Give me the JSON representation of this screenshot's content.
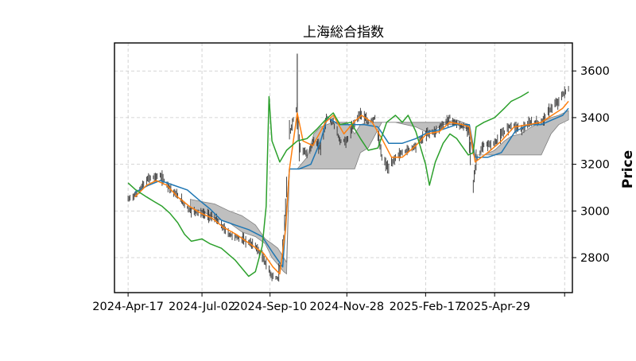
{
  "chart_data": {
    "type": "candlestick",
    "title": "上海総合指数",
    "ylabel": "Price",
    "xlabel": "",
    "y_axis_side": "right",
    "grid": true,
    "ylim": [
      2650,
      3720
    ],
    "xlim": [
      "2024-04-03",
      "2025-07-18"
    ],
    "x_ticks": [
      {
        "date": "2024-04-17",
        "label": "2024-Apr-17"
      },
      {
        "date": "2024-07-02",
        "label": "2024-Jul-02"
      },
      {
        "date": "2024-09-10",
        "label": "2024-Sep-10"
      },
      {
        "date": "2024-11-28",
        "label": "2024-Nov-28"
      },
      {
        "date": "2025-02-17",
        "label": "2025-Feb-17"
      },
      {
        "date": "2025-04-29",
        "label": "2025-Apr-29"
      },
      {
        "date": "2025-07-10",
        "label": ""
      }
    ],
    "y_ticks": [
      2800,
      3000,
      3200,
      3400,
      3600
    ],
    "price_path": [
      [
        "2024-04-17",
        3050
      ],
      [
        "2024-04-25",
        3070
      ],
      [
        "2024-05-08",
        3140
      ],
      [
        "2024-05-20",
        3150
      ],
      [
        "2024-05-30",
        3100
      ],
      [
        "2024-06-10",
        3050
      ],
      [
        "2024-06-20",
        3000
      ],
      [
        "2024-07-02",
        2990
      ],
      [
        "2024-07-15",
        2970
      ],
      [
        "2024-07-30",
        2900
      ],
      [
        "2024-08-12",
        2880
      ],
      [
        "2024-08-26",
        2850
      ],
      [
        "2024-09-05",
        2780
      ],
      [
        "2024-09-12",
        2720
      ],
      [
        "2024-09-18",
        2710
      ],
      [
        "2024-09-24",
        2860
      ],
      [
        "2024-09-27",
        3090
      ],
      [
        "2024-09-30",
        3330
      ],
      [
        "2024-10-08",
        3450
      ],
      [
        "2024-10-10",
        3280
      ],
      [
        "2024-10-18",
        3240
      ],
      [
        "2024-10-25",
        3300
      ],
      [
        "2024-11-01",
        3270
      ],
      [
        "2024-11-07",
        3400
      ],
      [
        "2024-11-14",
        3380
      ],
      [
        "2024-11-21",
        3300
      ],
      [
        "2024-11-28",
        3300
      ],
      [
        "2024-12-06",
        3380
      ],
      [
        "2024-12-12",
        3420
      ],
      [
        "2024-12-20",
        3380
      ],
      [
        "2024-12-27",
        3400
      ],
      [
        "2025-01-03",
        3230
      ],
      [
        "2025-01-10",
        3180
      ],
      [
        "2025-01-17",
        3230
      ],
      [
        "2025-01-24",
        3250
      ],
      [
        "2025-02-07",
        3280
      ],
      [
        "2025-02-17",
        3330
      ],
      [
        "2025-02-27",
        3340
      ],
      [
        "2025-03-07",
        3370
      ],
      [
        "2025-03-14",
        3400
      ],
      [
        "2025-03-21",
        3370
      ],
      [
        "2025-04-02",
        3350
      ],
      [
        "2025-04-07",
        3100
      ],
      [
        "2025-04-10",
        3220
      ],
      [
        "2025-04-18",
        3280
      ],
      [
        "2025-04-29",
        3290
      ],
      [
        "2025-05-09",
        3340
      ],
      [
        "2025-05-16",
        3370
      ],
      [
        "2025-05-26",
        3350
      ],
      [
        "2025-06-06",
        3380
      ],
      [
        "2025-06-16",
        3380
      ],
      [
        "2025-06-26",
        3440
      ],
      [
        "2025-07-04",
        3470
      ],
      [
        "2025-07-10",
        3510
      ],
      [
        "2025-07-14",
        3520
      ]
    ],
    "cloud": [
      [
        "2024-06-20",
        3050,
        3010
      ],
      [
        "2024-07-02",
        3040,
        3000
      ],
      [
        "2024-07-15",
        3030,
        2970
      ],
      [
        "2024-07-30",
        3000,
        2950
      ],
      [
        "2024-08-12",
        2980,
        2910
      ],
      [
        "2024-08-26",
        2940,
        2890
      ],
      [
        "2024-09-05",
        2880,
        2860
      ],
      [
        "2024-09-12",
        2860,
        2800
      ],
      [
        "2024-09-18",
        2840,
        2770
      ],
      [
        "2024-09-24",
        2800,
        2740
      ],
      [
        "2024-09-27",
        2780,
        2730
      ],
      [
        "2024-09-30",
        3180,
        3180
      ],
      [
        "2024-10-08",
        3180,
        3180
      ],
      [
        "2024-10-18",
        3230,
        3180
      ],
      [
        "2024-10-25",
        3330,
        3180
      ],
      [
        "2024-11-01",
        3360,
        3180
      ],
      [
        "2024-11-14",
        3380,
        3180
      ],
      [
        "2024-11-28",
        3380,
        3180
      ],
      [
        "2024-12-06",
        3330,
        3180
      ],
      [
        "2024-12-12",
        3370,
        3250
      ],
      [
        "2024-12-20",
        3380,
        3270
      ],
      [
        "2025-01-03",
        3380,
        3380
      ],
      [
        "2025-01-17",
        3380,
        3380
      ],
      [
        "2025-02-07",
        3380,
        3360
      ],
      [
        "2025-02-17",
        3380,
        3340
      ],
      [
        "2025-02-27",
        3380,
        3350
      ],
      [
        "2025-03-07",
        3380,
        3370
      ],
      [
        "2025-03-21",
        3390,
        3370
      ],
      [
        "2025-04-02",
        3370,
        3350
      ],
      [
        "2025-04-07",
        3240,
        3240
      ],
      [
        "2025-04-18",
        3240,
        3240
      ],
      [
        "2025-04-29",
        3260,
        3240
      ],
      [
        "2025-05-09",
        3300,
        3240
      ],
      [
        "2025-05-16",
        3320,
        3240
      ],
      [
        "2025-05-26",
        3330,
        3240
      ],
      [
        "2025-06-06",
        3360,
        3240
      ],
      [
        "2025-06-16",
        3380,
        3240
      ],
      [
        "2025-06-26",
        3400,
        3330
      ],
      [
        "2025-07-04",
        3410,
        3370
      ],
      [
        "2025-07-14",
        3430,
        3390
      ]
    ],
    "series": [
      {
        "color": "#1f77b4",
        "points": [
          [
            "2024-04-24",
            3080
          ],
          [
            "2024-05-08",
            3110
          ],
          [
            "2024-05-20",
            3130
          ],
          [
            "2024-06-03",
            3110
          ],
          [
            "2024-06-17",
            3090
          ],
          [
            "2024-06-28",
            3050
          ],
          [
            "2024-07-10",
            3010
          ],
          [
            "2024-07-22",
            2960
          ],
          [
            "2024-08-05",
            2940
          ],
          [
            "2024-08-19",
            2920
          ],
          [
            "2024-09-02",
            2890
          ],
          [
            "2024-09-13",
            2820
          ],
          [
            "2024-09-23",
            2760
          ],
          [
            "2024-09-30",
            3180
          ],
          [
            "2024-10-10",
            3180
          ],
          [
            "2024-10-22",
            3200
          ],
          [
            "2024-11-01",
            3300
          ],
          [
            "2024-11-08",
            3400
          ],
          [
            "2024-11-20",
            3370
          ],
          [
            "2024-12-02",
            3370
          ],
          [
            "2024-12-16",
            3370
          ],
          [
            "2024-12-30",
            3360
          ],
          [
            "2025-01-10",
            3290
          ],
          [
            "2025-01-24",
            3290
          ],
          [
            "2025-02-07",
            3310
          ],
          [
            "2025-02-21",
            3340
          ],
          [
            "2025-03-07",
            3350
          ],
          [
            "2025-03-21",
            3370
          ],
          [
            "2025-04-03",
            3370
          ],
          [
            "2025-04-09",
            3230
          ],
          [
            "2025-04-22",
            3230
          ],
          [
            "2025-05-06",
            3250
          ],
          [
            "2025-05-20",
            3340
          ],
          [
            "2025-06-03",
            3370
          ],
          [
            "2025-06-16",
            3370
          ],
          [
            "2025-06-27",
            3390
          ],
          [
            "2025-07-08",
            3410
          ],
          [
            "2025-07-14",
            3440
          ]
        ]
      },
      {
        "color": "#ff7f0e",
        "points": [
          [
            "2024-04-24",
            3060
          ],
          [
            "2024-05-06",
            3110
          ],
          [
            "2024-05-16",
            3130
          ],
          [
            "2024-05-27",
            3110
          ],
          [
            "2024-06-07",
            3060
          ],
          [
            "2024-06-19",
            3020
          ],
          [
            "2024-07-01",
            2990
          ],
          [
            "2024-07-12",
            2970
          ],
          [
            "2024-07-24",
            2930
          ],
          [
            "2024-08-06",
            2900
          ],
          [
            "2024-08-20",
            2860
          ],
          [
            "2024-09-03",
            2820
          ],
          [
            "2024-09-13",
            2760
          ],
          [
            "2024-09-20",
            2730
          ],
          [
            "2024-09-26",
            2920
          ],
          [
            "2024-09-30",
            3180
          ],
          [
            "2024-10-08",
            3420
          ],
          [
            "2024-10-14",
            3300
          ],
          [
            "2024-10-24",
            3280
          ],
          [
            "2024-11-06",
            3380
          ],
          [
            "2024-11-14",
            3410
          ],
          [
            "2024-11-25",
            3330
          ],
          [
            "2024-12-05",
            3380
          ],
          [
            "2024-12-13",
            3410
          ],
          [
            "2024-12-24",
            3380
          ],
          [
            "2025-01-03",
            3310
          ],
          [
            "2025-01-13",
            3230
          ],
          [
            "2025-01-24",
            3230
          ],
          [
            "2025-02-07",
            3280
          ],
          [
            "2025-02-18",
            3330
          ],
          [
            "2025-03-03",
            3340
          ],
          [
            "2025-03-14",
            3380
          ],
          [
            "2025-03-27",
            3370
          ],
          [
            "2025-04-03",
            3360
          ],
          [
            "2025-04-09",
            3210
          ],
          [
            "2025-04-22",
            3250
          ],
          [
            "2025-05-06",
            3300
          ],
          [
            "2025-05-19",
            3360
          ],
          [
            "2025-06-03",
            3370
          ],
          [
            "2025-06-16",
            3380
          ],
          [
            "2025-06-27",
            3410
          ],
          [
            "2025-07-08",
            3440
          ],
          [
            "2025-07-14",
            3470
          ]
        ]
      },
      {
        "color": "#2ca02c",
        "points": [
          [
            "2024-04-17",
            3120
          ],
          [
            "2024-04-25",
            3090
          ],
          [
            "2024-05-06",
            3060
          ],
          [
            "2024-05-14",
            3040
          ],
          [
            "2024-05-22",
            3020
          ],
          [
            "2024-05-30",
            2990
          ],
          [
            "2024-06-07",
            2950
          ],
          [
            "2024-06-14",
            2900
          ],
          [
            "2024-06-21",
            2870
          ],
          [
            "2024-07-02",
            2880
          ],
          [
            "2024-07-10",
            2860
          ],
          [
            "2024-07-22",
            2840
          ],
          [
            "2024-08-05",
            2790
          ],
          [
            "2024-08-19",
            2720
          ],
          [
            "2024-08-26",
            2740
          ],
          [
            "2024-09-02",
            2850
          ],
          [
            "2024-09-06",
            3020
          ],
          [
            "2024-09-09",
            3490
          ],
          [
            "2024-09-12",
            3300
          ],
          [
            "2024-09-20",
            3210
          ],
          [
            "2024-09-27",
            3260
          ],
          [
            "2024-10-08",
            3300
          ],
          [
            "2024-10-18",
            3310
          ],
          [
            "2024-10-28",
            3350
          ],
          [
            "2024-11-06",
            3390
          ],
          [
            "2024-11-14",
            3420
          ],
          [
            "2024-11-21",
            3370
          ],
          [
            "2024-12-02",
            3380
          ],
          [
            "2024-12-12",
            3310
          ],
          [
            "2024-12-20",
            3260
          ],
          [
            "2024-12-30",
            3270
          ],
          [
            "2025-01-08",
            3380
          ],
          [
            "2025-01-17",
            3410
          ],
          [
            "2025-01-24",
            3380
          ],
          [
            "2025-01-30",
            3410
          ],
          [
            "2025-02-07",
            3340
          ],
          [
            "2025-02-17",
            3200
          ],
          [
            "2025-02-21",
            3110
          ],
          [
            "2025-02-27",
            3210
          ],
          [
            "2025-03-07",
            3290
          ],
          [
            "2025-03-14",
            3330
          ],
          [
            "2025-03-21",
            3310
          ],
          [
            "2025-04-02",
            3240
          ],
          [
            "2025-04-07",
            3250
          ],
          [
            "2025-04-10",
            3360
          ],
          [
            "2025-04-18",
            3380
          ],
          [
            "2025-04-29",
            3400
          ],
          [
            "2025-05-09",
            3440
          ],
          [
            "2025-05-16",
            3470
          ],
          [
            "2025-05-26",
            3490
          ],
          [
            "2025-06-03",
            3510
          ]
        ]
      }
    ],
    "colors": {
      "candle": "#333333",
      "cloud": "#bfbfbf",
      "grid": "#c8c8c8",
      "title": "#000000"
    }
  }
}
